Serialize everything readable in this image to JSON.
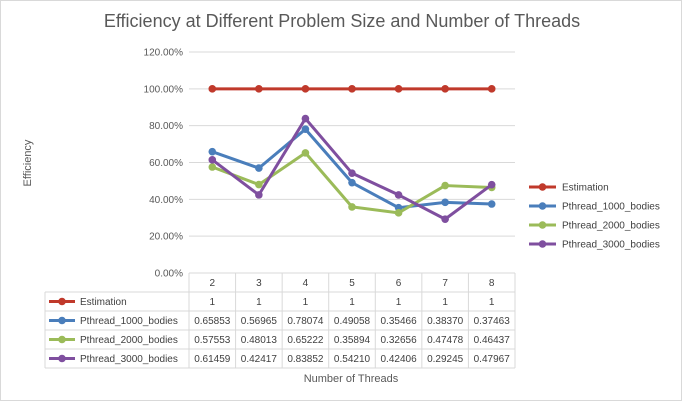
{
  "chart_data": {
    "type": "line",
    "title": "Efficiency at Different Problem Size and Number of Threads",
    "xlabel": "Number of Threads",
    "ylabel": "Efficiency",
    "categories": [
      "2",
      "3",
      "4",
      "5",
      "6",
      "7",
      "8"
    ],
    "yticks": [
      "0.00%",
      "20.00%",
      "40.00%",
      "60.00%",
      "80.00%",
      "100.00%",
      "120.00%"
    ],
    "ylim": [
      0,
      1.2
    ],
    "grid": true,
    "legend_position": "right",
    "data_table": true,
    "series": [
      {
        "name": "Estimation",
        "color": "#c0392b",
        "values": [
          1,
          1,
          1,
          1,
          1,
          1,
          1
        ],
        "labels": [
          "1",
          "1",
          "1",
          "1",
          "1",
          "1",
          "1"
        ]
      },
      {
        "name": "Pthread_1000_bodies",
        "color": "#4a7ebb",
        "values": [
          0.65853,
          0.56965,
          0.78074,
          0.49058,
          0.35466,
          0.3837,
          0.37463
        ],
        "labels": [
          "0.65853",
          "0.56965",
          "0.78074",
          "0.49058",
          "0.35466",
          "0.38370",
          "0.37463"
        ]
      },
      {
        "name": "Pthread_2000_bodies",
        "color": "#9bbb59",
        "values": [
          0.57553,
          0.48013,
          0.65222,
          0.35894,
          0.32656,
          0.47478,
          0.46437
        ],
        "labels": [
          "0.57553",
          "0.48013",
          "0.65222",
          "0.35894",
          "0.32656",
          "0.47478",
          "0.46437"
        ]
      },
      {
        "name": "Pthread_3000_bodies",
        "color": "#7f4f9f",
        "values": [
          0.61459,
          0.42417,
          0.83852,
          0.5421,
          0.42406,
          0.29245,
          0.47967
        ],
        "labels": [
          "0.61459",
          "0.42417",
          "0.83852",
          "0.54210",
          "0.42406",
          "0.29245",
          "0.47967"
        ]
      }
    ]
  }
}
